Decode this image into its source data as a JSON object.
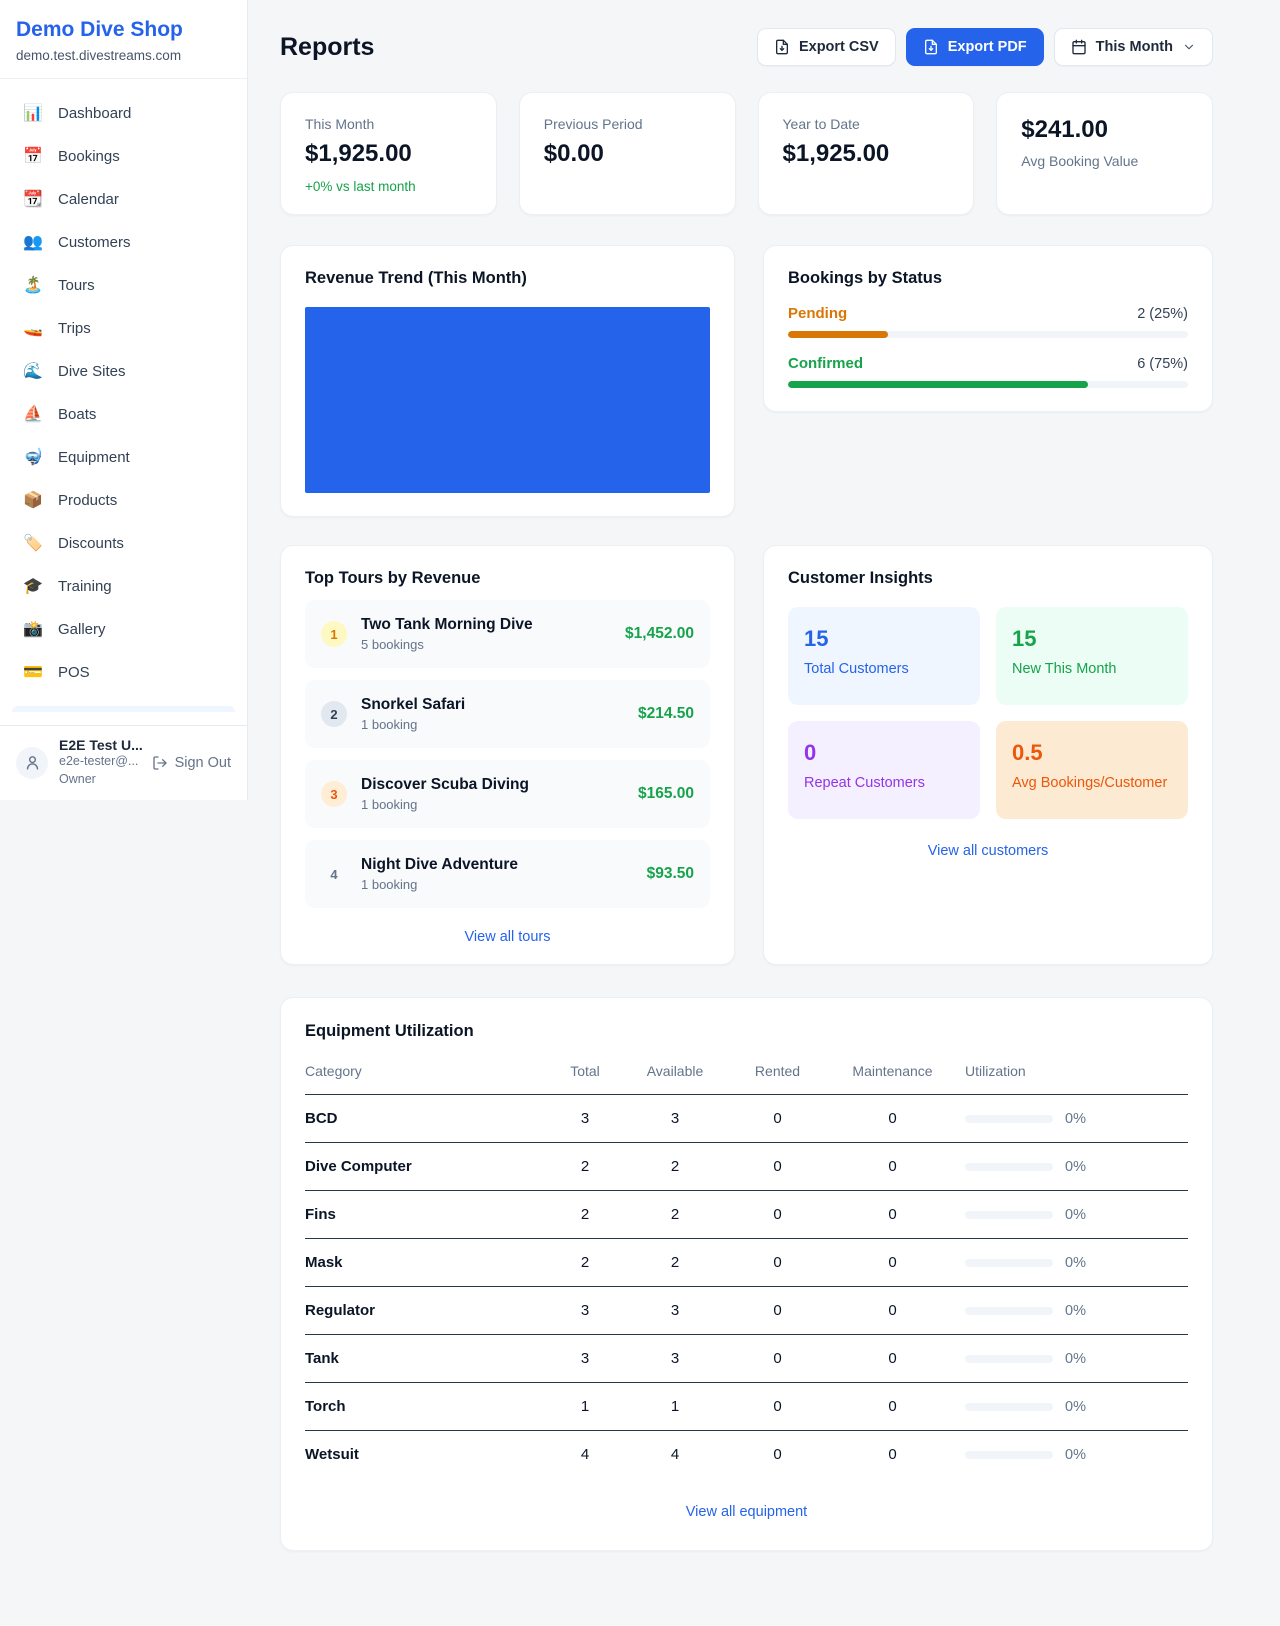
{
  "app": {
    "shop_name": "Demo Dive Shop",
    "shop_domain": "demo.test.divestreams.com"
  },
  "sidebar": {
    "items": [
      {
        "icon": "📊",
        "label": "Dashboard"
      },
      {
        "icon": "📅",
        "label": "Bookings"
      },
      {
        "icon": "📆",
        "label": "Calendar"
      },
      {
        "icon": "👥",
        "label": "Customers"
      },
      {
        "icon": "🏝️",
        "label": "Tours"
      },
      {
        "icon": "🚤",
        "label": "Trips"
      },
      {
        "icon": "🌊",
        "label": "Dive Sites"
      },
      {
        "icon": "⛵",
        "label": "Boats"
      },
      {
        "icon": "🤿",
        "label": "Equipment"
      },
      {
        "icon": "📦",
        "label": "Products"
      },
      {
        "icon": "🏷️",
        "label": "Discounts"
      },
      {
        "icon": "🎓",
        "label": "Training"
      },
      {
        "icon": "📸",
        "label": "Gallery"
      },
      {
        "icon": "💳",
        "label": "POS"
      }
    ],
    "user": {
      "name": "E2E Test U...",
      "email": "e2e-tester@...",
      "role": "Owner",
      "sign_out_label": "Sign Out"
    }
  },
  "header": {
    "title": "Reports",
    "export_csv_label": "Export CSV",
    "export_pdf_label": "Export PDF",
    "period_label": "This Month"
  },
  "stats": {
    "cards": [
      {
        "label": "This Month",
        "value": "$1,925.00",
        "delta": "+0% vs last month"
      },
      {
        "label": "Previous Period",
        "value": "$0.00"
      },
      {
        "label": "Year to Date",
        "value": "$1,925.00"
      },
      {
        "label": "Avg Booking Value",
        "value": "$241.00"
      }
    ]
  },
  "revenue_trend": {
    "title": "Revenue Trend (This Month)",
    "bar_color": "#2563eb"
  },
  "bookings_by_status": {
    "title": "Bookings by Status",
    "rows": [
      {
        "label": "Pending",
        "count": "2 (25%)",
        "pct": 25,
        "color": "#d97706"
      },
      {
        "label": "Confirmed",
        "count": "6 (75%)",
        "pct": 75,
        "color": "#16a34a"
      }
    ]
  },
  "top_tours": {
    "title": "Top Tours by Revenue",
    "rows": [
      {
        "rank": "1",
        "name": "Two Tank Morning Dive",
        "bookings": "5 bookings",
        "amount": "$1,452.00"
      },
      {
        "rank": "2",
        "name": "Snorkel Safari",
        "bookings": "1 booking",
        "amount": "$214.50"
      },
      {
        "rank": "3",
        "name": "Discover Scuba Diving",
        "bookings": "1 booking",
        "amount": "$165.00"
      },
      {
        "rank": "4",
        "name": "Night Dive Adventure",
        "bookings": "1 booking",
        "amount": "$93.50"
      }
    ],
    "view_all_label": "View all tours"
  },
  "customer_insights": {
    "title": "Customer Insights",
    "boxes": [
      {
        "value": "15",
        "label": "Total Customers",
        "color": "#2563eb",
        "bg": "#eff6ff"
      },
      {
        "value": "15",
        "label": "New This Month",
        "color": "#16a34a",
        "bg": "#ecfdf5"
      },
      {
        "value": "0",
        "label": "Repeat Customers",
        "color": "#9333ea",
        "bg": "#f5f0ff"
      },
      {
        "value": "0.5",
        "label": "Avg Bookings/Customer",
        "color": "#ea580c",
        "bg": "#fdead3"
      }
    ],
    "view_all_label": "View all customers"
  },
  "equipment": {
    "title": "Equipment Utilization",
    "columns": [
      "Category",
      "Total",
      "Available",
      "Rented",
      "Maintenance",
      "Utilization"
    ],
    "rows": [
      {
        "category": "BCD",
        "total": "3",
        "available": "3",
        "rented": "0",
        "maintenance": "0",
        "utilization": "0%",
        "utilization_pct": 0
      },
      {
        "category": "Dive Computer",
        "total": "2",
        "available": "2",
        "rented": "0",
        "maintenance": "0",
        "utilization": "0%",
        "utilization_pct": 0
      },
      {
        "category": "Fins",
        "total": "2",
        "available": "2",
        "rented": "0",
        "maintenance": "0",
        "utilization": "0%",
        "utilization_pct": 0
      },
      {
        "category": "Mask",
        "total": "2",
        "available": "2",
        "rented": "0",
        "maintenance": "0",
        "utilization": "0%",
        "utilization_pct": 0
      },
      {
        "category": "Regulator",
        "total": "3",
        "available": "3",
        "rented": "0",
        "maintenance": "0",
        "utilization": "0%",
        "utilization_pct": 0
      },
      {
        "category": "Tank",
        "total": "3",
        "available": "3",
        "rented": "0",
        "maintenance": "0",
        "utilization": "0%",
        "utilization_pct": 0
      },
      {
        "category": "Torch",
        "total": "1",
        "available": "1",
        "rented": "0",
        "maintenance": "0",
        "utilization": "0%",
        "utilization_pct": 0
      },
      {
        "category": "Wetsuit",
        "total": "4",
        "available": "4",
        "rented": "0",
        "maintenance": "0",
        "utilization": "0%",
        "utilization_pct": 0
      }
    ],
    "view_all_label": "View all equipment"
  },
  "chart_data": [
    {
      "type": "bar",
      "title": "Revenue Trend (This Month)",
      "categories": [
        "This Month"
      ],
      "values": [
        1925
      ],
      "color": "#2563eb",
      "note": "rendered as a single solid full-area bar, no axes or labels visible"
    },
    {
      "type": "bar",
      "title": "Bookings by Status",
      "categories": [
        "Pending",
        "Confirmed"
      ],
      "values": [
        2,
        6
      ],
      "percentages": [
        25,
        75
      ],
      "colors": [
        "#d97706",
        "#16a34a"
      ]
    }
  ],
  "colors": {
    "accent_blue": "#2563eb",
    "green": "#16a34a",
    "pending_orange": "#d97706",
    "maintenance_orange": "#ea580c",
    "purple": "#9333ea",
    "page_bg": "#f4f6f8",
    "muted_text": "#64748b"
  }
}
